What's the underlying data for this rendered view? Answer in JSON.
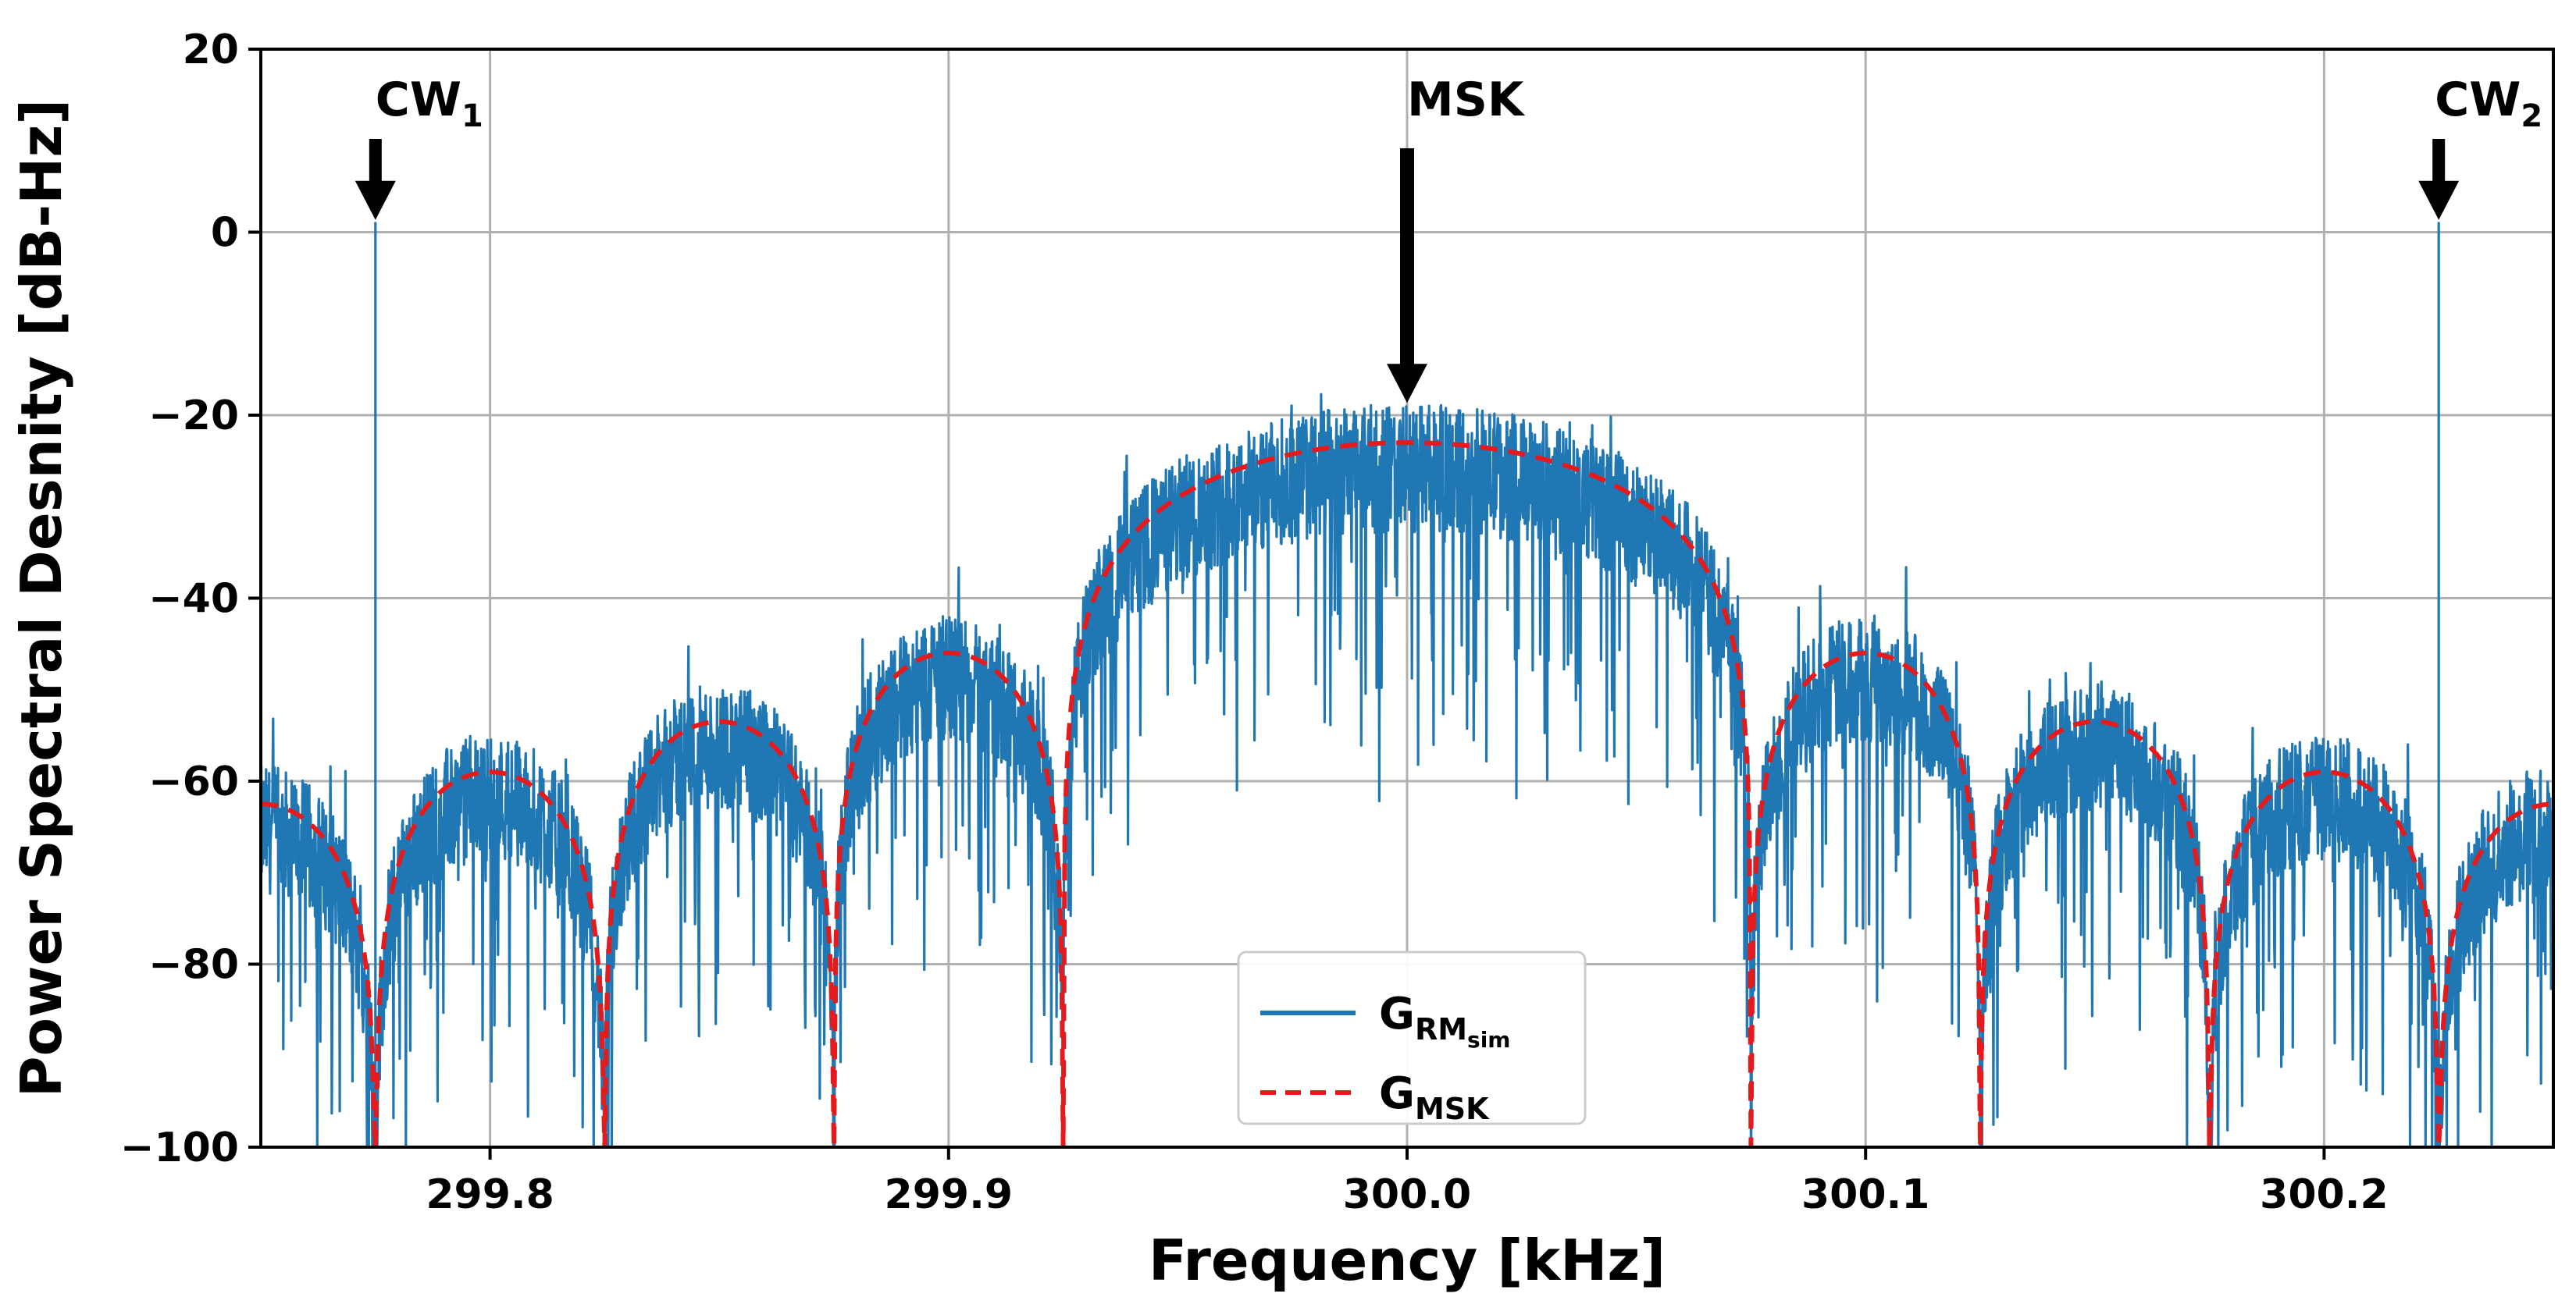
{
  "chart_data": {
    "type": "line",
    "title": "",
    "xlabel": "Frequency   [kHz]",
    "ylabel": "Power Spectral Desnity   [dB-Hz]",
    "xlim": [
      299.75,
      300.25
    ],
    "ylim": [
      -100,
      20
    ],
    "grid": true,
    "x_ticks": [
      299.8,
      299.9,
      300.0,
      300.1,
      300.2
    ],
    "x_tick_labels": [
      "299.8",
      "299.9",
      "300.0",
      "300.1",
      "300.2"
    ],
    "y_ticks": [
      20,
      0,
      -20,
      -40,
      -60,
      -80,
      -100
    ],
    "y_tick_labels": [
      "20",
      "0",
      "−20",
      "−40",
      "−60",
      "−80",
      "−100"
    ],
    "msk_model": {
      "center_khz": 300.0,
      "peak_db": -23,
      "first_null_offset_khz": 0.075,
      "null_spacing_khz": 0.05,
      "sidelobe_peaks": [
        {
          "freq": 299.905,
          "value": -46
        },
        {
          "freq": 300.095,
          "value": -46
        },
        {
          "freq": 299.853,
          "value": -53.5
        },
        {
          "freq": 300.147,
          "value": -53.5
        },
        {
          "freq": 299.802,
          "value": -59
        },
        {
          "freq": 300.198,
          "value": -59
        }
      ]
    },
    "cw_tones": [
      {
        "name": "CW1",
        "freq": 299.775,
        "value": 1
      },
      {
        "name": "CW2",
        "freq": 300.225,
        "value": 1
      }
    ],
    "series": [
      {
        "name": "G_RM_sim",
        "color": "#1f77b4",
        "style": "solid",
        "description": "simulated noisy spectrum"
      },
      {
        "name": "G_MSK",
        "color": "#e41a1c",
        "style": "dashed",
        "description": "theoretical MSK spectrum"
      }
    ],
    "annotations": [
      {
        "id": "cw1",
        "label": "CW",
        "sub": "1",
        "freq": 299.775,
        "arrow_from": 10,
        "arrow_to": 1
      },
      {
        "id": "msk",
        "label": "MSK",
        "sub": "",
        "freq": 300.0,
        "arrow_from": 10,
        "arrow_to": -19
      },
      {
        "id": "cw2",
        "label": "CW",
        "sub": "2",
        "freq": 300.225,
        "arrow_from": 10,
        "arrow_to": 1
      }
    ],
    "legend": {
      "position": "lower-center",
      "entries": [
        {
          "label": "G",
          "sub": "RM",
          "subsub": "sim",
          "color": "#1f77b4",
          "style": "solid"
        },
        {
          "label": "G",
          "sub": "MSK",
          "subsub": "",
          "color": "#e41a1c",
          "style": "dashed"
        }
      ]
    }
  },
  "colors": {
    "blue": "#1f77b4",
    "red": "#e41a1c",
    "grid": "#b0b0b0",
    "axis": "#000000"
  }
}
